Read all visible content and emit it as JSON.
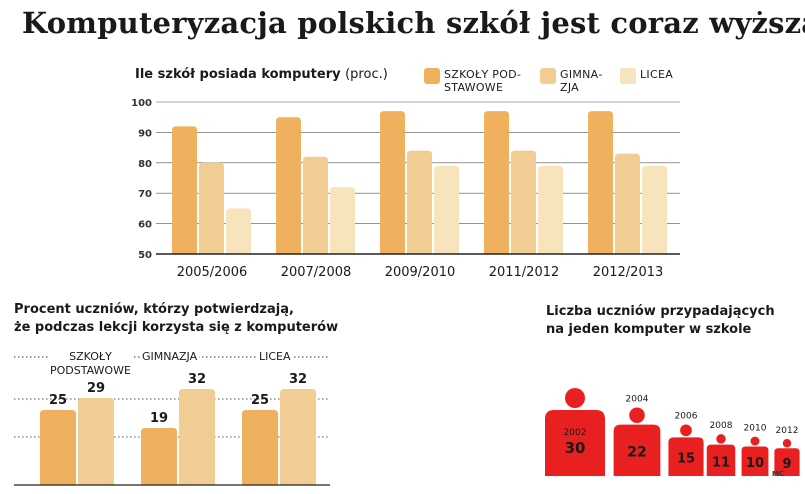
{
  "headline": "Komputeryzacja polskich szkół  jest coraz wyższa",
  "colors": {
    "primary": "#efb15e",
    "secondary": "#f1cd94",
    "tertiary": "#f8e4bc",
    "red": "#e8201f",
    "dark": "#1a1a1a"
  },
  "chart_data": [
    {
      "type": "bar",
      "title": "Ile szkół posiada komputery",
      "title_unit": "(proc.)",
      "categories": [
        "2005/2006",
        "2007/2008",
        "2009/2010",
        "2011/2012",
        "2012/2013"
      ],
      "series": [
        {
          "name": "SZKOŁY PODSTAWOWE",
          "label_lines": [
            "SZKOŁY POD‑",
            "STAWOWE"
          ],
          "values": [
            92,
            95,
            97,
            97,
            97
          ]
        },
        {
          "name": "GIMNAZJA",
          "label_lines": [
            "GIMNA‑",
            "ZJA"
          ],
          "values": [
            80,
            82,
            84,
            84,
            83
          ]
        },
        {
          "name": "LICEA",
          "label_lines": [
            "LICEA"
          ],
          "values": [
            65,
            72,
            79,
            79,
            79
          ]
        }
      ],
      "ylim": [
        50,
        100
      ],
      "yticks": [
        "50",
        "60",
        "70",
        "80",
        "90",
        "100"
      ],
      "grid": true
    },
    {
      "type": "bar",
      "title_lines": [
        "Procent uczniów, którzy potwierdzają,",
        "że podczas lekcji korzysta się z komputerów"
      ],
      "categories": [
        {
          "label_lines": [
            "SZKOŁY",
            "PODSTAWOWE"
          ],
          "values": [
            25,
            29
          ],
          "value_labels": [
            "25",
            "29"
          ]
        },
        {
          "label_lines": [
            "GIMNAZJA"
          ],
          "values": [
            19,
            32
          ],
          "value_labels": [
            "19",
            "32"
          ]
        },
        {
          "label_lines": [
            "LICEA"
          ],
          "values": [
            25,
            32
          ],
          "value_labels": [
            "25",
            "32"
          ]
        }
      ],
      "ylim": [
        0,
        40
      ]
    },
    {
      "type": "pictogram",
      "title_lines": [
        "Liczba uczniów przypadających",
        "na jeden komputer w szkole"
      ],
      "years": [
        "2002",
        "2004",
        "2006",
        "2008",
        "2010",
        "2012"
      ],
      "values": [
        30,
        22,
        15,
        11,
        10,
        9
      ],
      "value_labels": [
        "30",
        "22",
        "15",
        "11",
        "10",
        "9"
      ]
    }
  ],
  "credit": "MC"
}
